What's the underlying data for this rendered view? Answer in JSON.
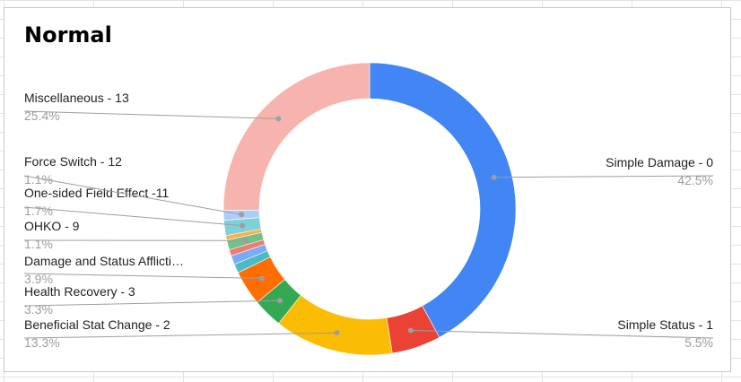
{
  "chart_data": {
    "type": "pie",
    "variant": "donut",
    "title": "Normal",
    "slices": [
      {
        "label": "Simple Damage - 0",
        "percent_label": "42.5%",
        "value": 42.5,
        "color": "#4285f4"
      },
      {
        "label": "Simple Status - 1",
        "percent_label": "5.5%",
        "value": 5.5,
        "color": "#ea4335"
      },
      {
        "label": "Beneficial Stat Change - 2",
        "percent_label": "13.3%",
        "value": 13.3,
        "color": "#fbbc04"
      },
      {
        "label": "Health Recovery - 3",
        "percent_label": "3.3%",
        "value": 3.3,
        "color": "#34a853"
      },
      {
        "label": "Damage and Status Afflicti…",
        "percent_label": "3.9%",
        "value": 3.9,
        "color": "#ff6d01"
      },
      {
        "label": "",
        "percent_label": "",
        "value": 1.0,
        "color": "#46bdc6"
      },
      {
        "label": "",
        "percent_label": "",
        "value": 1.0,
        "color": "#7baaf7"
      },
      {
        "label": "",
        "percent_label": "",
        "value": 0.7,
        "color": "#f07b72"
      },
      {
        "label": "OHKO - 9",
        "percent_label": "1.1%",
        "value": 1.1,
        "color": "#71c287"
      },
      {
        "label": "",
        "percent_label": "",
        "value": 0.5,
        "color": "#ffad47"
      },
      {
        "label": "One-sided Field Effect -11",
        "percent_label": "1.7%",
        "value": 1.7,
        "color": "#7ed1d7"
      },
      {
        "label": "Force Switch - 12",
        "percent_label": "1.1%",
        "value": 1.1,
        "color": "#afcbfa"
      },
      {
        "label": "Miscellaneous - 13",
        "percent_label": "25.4%",
        "value": 25.4,
        "color": "#f7b4ae"
      }
    ],
    "start_angle_deg": 0,
    "direction": "clockwise",
    "legend": "none",
    "label_color": "#222222",
    "percent_color": "#9e9e9e",
    "leader_color": "#9e9e9e"
  }
}
